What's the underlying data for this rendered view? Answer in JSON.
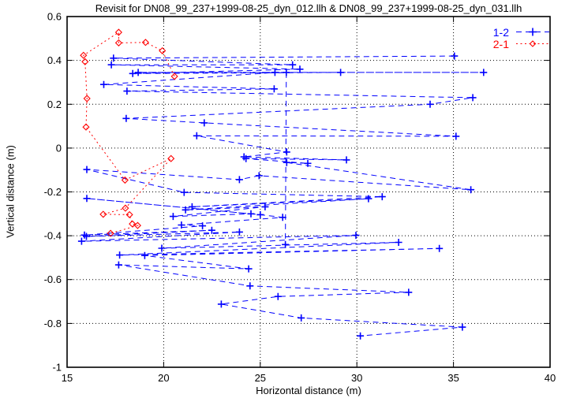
{
  "chart_data": {
    "type": "line",
    "title": "Revisit for DN08_99_237+1999-08-25_dyn_012.llh & DN08_99_237+1999-08-25_dyn_031.llh",
    "xlabel": "Horizontal distance (m)",
    "ylabel": "Vertical distance (m)",
    "xlim": [
      15,
      40
    ],
    "ylim": [
      -1,
      0.6
    ],
    "xticks": [
      15,
      20,
      25,
      30,
      35,
      40
    ],
    "xtick_labels": [
      "15",
      "20",
      "25",
      "30",
      "35",
      "40"
    ],
    "yticks": [
      -1,
      -0.8,
      -0.6,
      -0.4,
      -0.2,
      0,
      0.2,
      0.4,
      0.6
    ],
    "ytick_labels": [
      "-1",
      "-0.8",
      "-0.6",
      "-0.4",
      "-0.2",
      "0",
      "0.2",
      "0.4",
      "0.6"
    ],
    "grid": true,
    "legend_position": "top-right",
    "background_color": "#ffffff",
    "frame_color": "#000000",
    "series": [
      {
        "name": "1-2",
        "color": "#0000ff",
        "marker": "plus",
        "linestyle": "dashed",
        "paths": [
          [
            [
              35.05,
              0.42
            ],
            [
              17.4,
              0.41
            ],
            [
              26.67,
              0.38
            ],
            [
              17.29,
              0.38
            ],
            [
              27.05,
              0.36
            ],
            [
              18.4,
              0.34
            ],
            [
              29.16,
              0.345
            ],
            [
              18.68,
              0.345
            ],
            [
              36.56,
              0.345
            ],
            [
              25.76,
              0.345
            ],
            [
              16.9,
              0.29
            ],
            [
              25.72,
              0.27
            ],
            [
              18.1,
              0.26
            ],
            [
              36.0,
              0.23
            ],
            [
              33.79,
              0.2
            ],
            [
              18.06,
              0.135
            ],
            [
              22.1,
              0.115
            ],
            [
              35.13,
              0.054
            ],
            [
              21.71,
              0.056
            ],
            [
              26.37,
              -0.018
            ],
            [
              24.16,
              -0.04
            ],
            [
              29.46,
              -0.054
            ],
            [
              24.26,
              -0.048
            ],
            [
              27.46,
              -0.07
            ],
            [
              26.37,
              -0.066
            ],
            [
              35.9,
              -0.19
            ],
            [
              24.94,
              -0.126
            ],
            [
              23.92,
              -0.144
            ],
            [
              16.02,
              -0.098
            ],
            [
              21.06,
              -0.202
            ],
            [
              31.31,
              -0.222
            ],
            [
              21.47,
              -0.268
            ],
            [
              30.6,
              -0.231
            ],
            [
              21.13,
              -0.282
            ],
            [
              25.25,
              -0.268
            ],
            [
              20.49,
              -0.312
            ],
            [
              24.52,
              -0.3
            ],
            [
              16.02,
              -0.23
            ],
            [
              25.0,
              -0.304
            ],
            [
              26.16,
              -0.316
            ],
            [
              20.92,
              -0.351
            ],
            [
              22.01,
              -0.355
            ],
            [
              15.9,
              -0.397
            ],
            [
              22.49,
              -0.375
            ],
            [
              16.0,
              -0.403
            ],
            [
              23.92,
              -0.383
            ],
            [
              15.75,
              -0.425
            ],
            [
              29.95,
              -0.398
            ],
            [
              19.9,
              -0.457
            ],
            [
              32.16,
              -0.43
            ],
            [
              17.72,
              -0.488
            ],
            [
              34.27,
              -0.458
            ],
            [
              19.02,
              -0.49
            ],
            [
              24.4,
              -0.551
            ],
            [
              17.67,
              -0.533
            ],
            [
              24.47,
              -0.629
            ],
            [
              32.68,
              -0.658
            ],
            [
              25.92,
              -0.677
            ],
            [
              22.98,
              -0.712
            ],
            [
              27.12,
              -0.775
            ],
            [
              35.46,
              -0.817
            ],
            [
              30.18,
              -0.857
            ]
          ],
          [
            [
              26.35,
              0.345
            ],
            [
              26.3,
              -0.44
            ]
          ]
        ]
      },
      {
        "name": "2-1",
        "color": "#ff0000",
        "marker": "diamond",
        "linestyle": "dotted",
        "paths": [
          [
            [
              20.56,
              0.327
            ],
            [
              19.93,
              0.444
            ],
            [
              19.06,
              0.482
            ],
            [
              17.67,
              0.48
            ],
            [
              17.67,
              0.528
            ],
            [
              15.85,
              0.423
            ],
            [
              15.93,
              0.394
            ],
            [
              16.03,
              0.226
            ],
            [
              15.98,
              0.096
            ],
            [
              18.0,
              -0.146
            ],
            [
              20.38,
              -0.048
            ],
            [
              18.02,
              -0.274
            ],
            [
              16.87,
              -0.302
            ],
            [
              18.23,
              -0.304
            ],
            [
              18.38,
              -0.346
            ],
            [
              18.65,
              -0.353
            ],
            [
              17.25,
              -0.389
            ]
          ]
        ]
      }
    ]
  }
}
